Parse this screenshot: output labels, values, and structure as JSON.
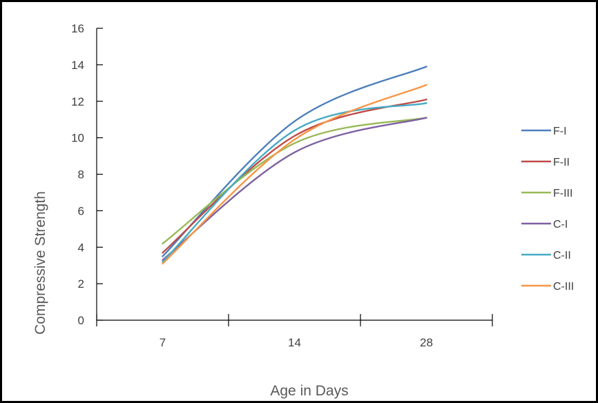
{
  "chart_data": {
    "type": "line",
    "categories": [
      "7",
      "14",
      "28"
    ],
    "xlabel": "Age in Days",
    "ylabel": "Compressive Strength",
    "ylim": [
      0,
      16
    ],
    "yticks": [
      0,
      2,
      4,
      6,
      8,
      10,
      12,
      14,
      16
    ],
    "grid": false,
    "legend_position": "right",
    "series": [
      {
        "name": "F-I",
        "color": "#4a7ebb",
        "values": [
          3.5,
          10.9,
          13.9
        ]
      },
      {
        "name": "F-II",
        "color": "#be4b48",
        "values": [
          3.7,
          10.1,
          12.1
        ]
      },
      {
        "name": "F-III",
        "color": "#98b954",
        "values": [
          4.2,
          9.7,
          11.1
        ]
      },
      {
        "name": "C-I",
        "color": "#7d60a0",
        "values": [
          3.3,
          9.2,
          11.1
        ]
      },
      {
        "name": "C-II",
        "color": "#46aac5",
        "values": [
          3.2,
          10.4,
          11.9
        ]
      },
      {
        "name": "C-III",
        "color": "#f79646",
        "values": [
          3.1,
          9.9,
          12.9
        ]
      }
    ]
  }
}
